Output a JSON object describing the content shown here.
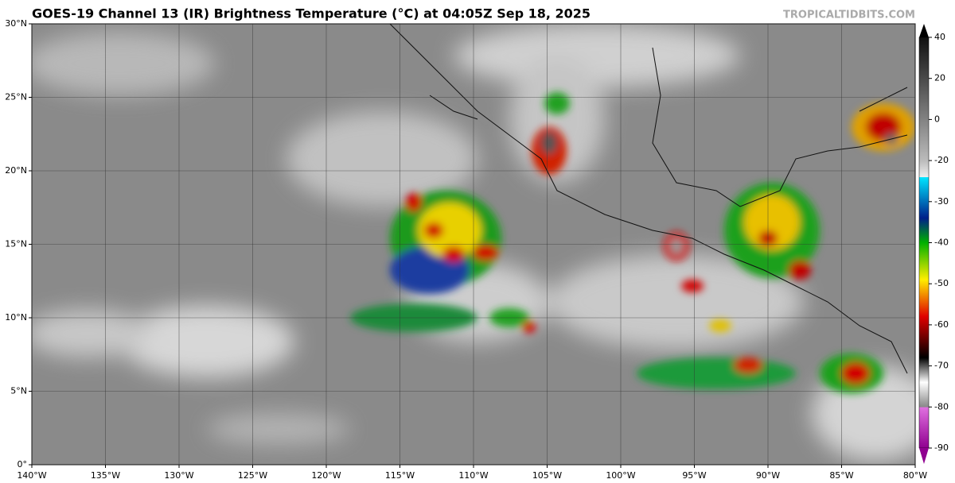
{
  "header": {
    "title": "GOES-19 Channel 13 (IR) Brightness Temperature (°C) at 04:05Z Sep 18, 2025",
    "credit": "TROPICALTIDBITS.COM"
  },
  "map": {
    "xlim": [
      -140,
      -80
    ],
    "ylim": [
      0,
      30
    ],
    "xticks": [
      {
        "value": -140,
        "label": "140°W"
      },
      {
        "value": -135,
        "label": "135°W"
      },
      {
        "value": -130,
        "label": "130°W"
      },
      {
        "value": -125,
        "label": "125°W"
      },
      {
        "value": -120,
        "label": "120°W"
      },
      {
        "value": -115,
        "label": "115°W"
      },
      {
        "value": -110,
        "label": "110°W"
      },
      {
        "value": -105,
        "label": "105°W"
      },
      {
        "value": -100,
        "label": "100°W"
      },
      {
        "value": -95,
        "label": "95°W"
      },
      {
        "value": -90,
        "label": "90°W"
      },
      {
        "value": -85,
        "label": "85°W"
      },
      {
        "value": -80,
        "label": "80°W"
      }
    ],
    "yticks": [
      {
        "value": 0,
        "label": "0°"
      },
      {
        "value": 5,
        "label": "5°N"
      },
      {
        "value": 10,
        "label": "10°N"
      },
      {
        "value": 15,
        "label": "15°N"
      },
      {
        "value": 20,
        "label": "20°N"
      },
      {
        "value": 25,
        "label": "25°N"
      },
      {
        "value": 30,
        "label": "30°N"
      }
    ],
    "grid": true
  },
  "colorbar": {
    "ticks": [
      40,
      20,
      0,
      -20,
      -30,
      -40,
      -50,
      -60,
      -70,
      -80,
      -90
    ]
  }
}
